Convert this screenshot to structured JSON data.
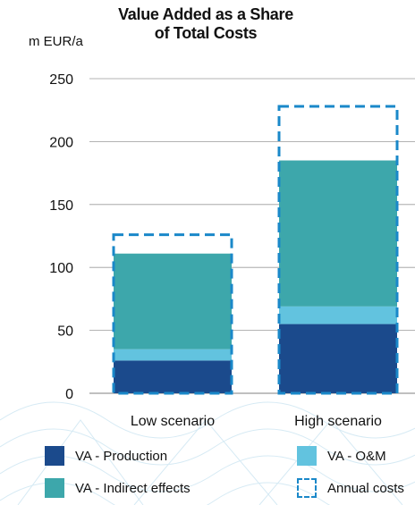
{
  "chart_data": {
    "type": "bar",
    "stacked": true,
    "title": "Value Added as a Share\nof Total Costs",
    "unit_label": "m EUR/a",
    "categories": [
      "Low scenario",
      "High scenario"
    ],
    "ylim": [
      0,
      250
    ],
    "yticks": [
      0,
      50,
      100,
      150,
      200,
      250
    ],
    "grid": true,
    "series": [
      {
        "name": "VA - Production",
        "values": [
          26,
          55
        ],
        "color": "#1b4a8c"
      },
      {
        "name": "VA - O&M",
        "values": [
          9,
          14
        ],
        "color": "#62c3df"
      },
      {
        "name": "VA - Indirect effects",
        "values": [
          76,
          116
        ],
        "color": "#3da7ab"
      }
    ],
    "outline_series": {
      "name": "Annual costs",
      "values": [
        126,
        228
      ],
      "color": "#1a88c9",
      "style": "dashed"
    }
  }
}
